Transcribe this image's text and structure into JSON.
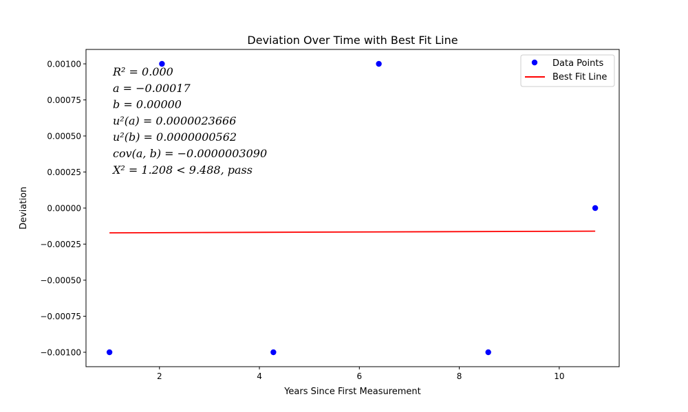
{
  "chart_data": {
    "type": "scatter",
    "title": "Deviation Over Time with Best Fit Line",
    "xlabel": "Years Since First Measurement",
    "ylabel": "Deviation",
    "xlim": [
      0.53,
      11.2
    ],
    "ylim": [
      -0.0011,
      0.0011
    ],
    "xticks": [
      2,
      4,
      6,
      8,
      10
    ],
    "xtick_labels": [
      "2",
      "4",
      "6",
      "8",
      "10"
    ],
    "yticks": [
      0.001,
      0.00075,
      0.0005,
      0.00025,
      0,
      -0.00025,
      -0.0005,
      -0.00075,
      -0.001
    ],
    "ytick_labels": [
      "0.00100",
      "0.00075",
      "0.00050",
      "0.00025",
      "0.00000",
      "−0.00025",
      "−0.00050",
      "−0.00075",
      "−0.00100"
    ],
    "grid": false,
    "legend_position": "top-right",
    "series": [
      {
        "name": "Data Points",
        "type": "scatter",
        "color": "#0000ff",
        "x": [
          1.0,
          2.05,
          4.28,
          6.39,
          8.58,
          10.72
        ],
        "y": [
          -0.001,
          0.001,
          -0.001,
          0.001,
          -0.001,
          0.0
        ]
      },
      {
        "name": "Best Fit Line",
        "type": "line",
        "color": "#ff0000",
        "x": [
          1.0,
          10.72
        ],
        "y": [
          -0.000172,
          -0.00016
        ]
      }
    ],
    "annotations": [
      "R² = 0.000",
      "a = −0.00017",
      "b = 0.00000",
      "u²(a) = 0.0000023666",
      "u²(b) = 0.0000000562",
      "cov(a, b) = −0.0000003090",
      "X² = 1.208 < 9.488, pass"
    ]
  }
}
